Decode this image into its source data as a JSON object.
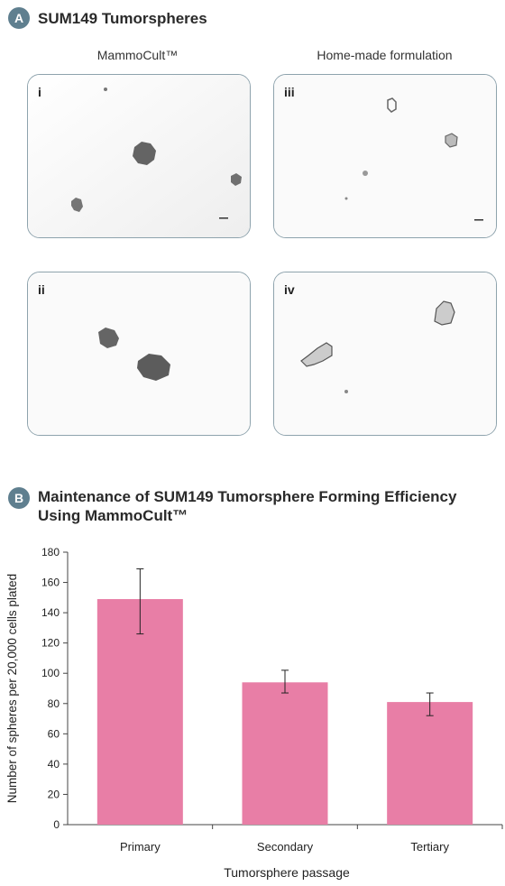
{
  "section_a": {
    "badge": "A",
    "title": "SUM149 Tumorspheres"
  },
  "columns": [
    "MammoCult™",
    "Home-made formulation"
  ],
  "panels": [
    "i",
    "ii",
    "iii",
    "iv"
  ],
  "section_b": {
    "badge": "B",
    "title_line1": "Maintenance of SUM149 Tumorsphere Forming Efficiency",
    "title_line2": "Using MammoCult™"
  },
  "colors": {
    "bar": "#e87ea6",
    "badge": "#5f7f8f",
    "panel_border": "#8ea3ad"
  },
  "chart_data": {
    "type": "bar",
    "categories": [
      "Primary",
      "Secondary",
      "Tertiary"
    ],
    "values": [
      149,
      94,
      81
    ],
    "error_low": [
      126,
      87,
      72
    ],
    "error_high": [
      169,
      102,
      87
    ],
    "xlabel": "Tumorsphere passage",
    "ylabel": "Number of spheres per 20,000 cells plated",
    "ylim": [
      0,
      180
    ],
    "yticks": [
      0,
      20,
      40,
      60,
      80,
      100,
      120,
      140,
      160,
      180
    ],
    "grid": false
  }
}
